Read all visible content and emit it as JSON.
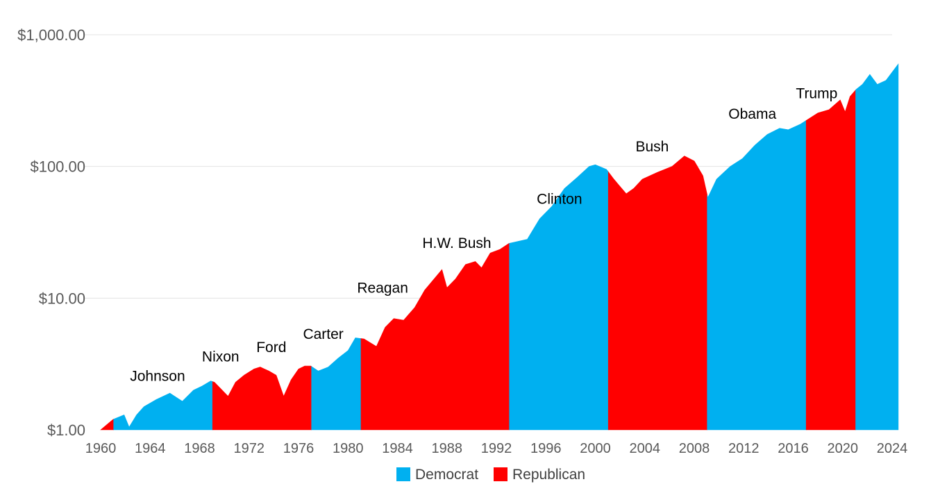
{
  "chart_data": {
    "type": "area",
    "scale": "log",
    "ylim": [
      1,
      1000
    ],
    "xlim": [
      1960,
      2024
    ],
    "grid": "horizontal",
    "legend_position": "bottom",
    "y_ticks": [
      {
        "value": 1,
        "label": "$1.00"
      },
      {
        "value": 10,
        "label": "$10.00"
      },
      {
        "value": 100,
        "label": "$100.00"
      },
      {
        "value": 1000,
        "label": "$1,000.00"
      }
    ],
    "x_ticks": [
      "1960",
      "1964",
      "1968",
      "1972",
      "1976",
      "1980",
      "1984",
      "1988",
      "1992",
      "1996",
      "2000",
      "2004",
      "2008",
      "2012",
      "2016",
      "2020",
      "2024"
    ],
    "legend": [
      {
        "label": "Democrat",
        "color": "#00b0f0"
      },
      {
        "label": "Republican",
        "color": "#ff0000"
      }
    ],
    "colors": {
      "Democrat": "#00b0f0",
      "Republican": "#ff0000"
    },
    "points": [
      [
        1960.0,
        1.0
      ],
      [
        1961.0,
        1.2
      ],
      [
        1961.9,
        1.3
      ],
      [
        1962.3,
        1.05
      ],
      [
        1962.9,
        1.3
      ],
      [
        1963.5,
        1.5
      ],
      [
        1964.5,
        1.7
      ],
      [
        1965.6,
        1.9
      ],
      [
        1966.6,
        1.65
      ],
      [
        1967.5,
        2.0
      ],
      [
        1968.2,
        2.15
      ],
      [
        1968.9,
        2.35
      ],
      [
        1969.2,
        2.3
      ],
      [
        1970.3,
        1.8
      ],
      [
        1970.9,
        2.3
      ],
      [
        1971.6,
        2.6
      ],
      [
        1972.4,
        2.9
      ],
      [
        1972.9,
        3.0
      ],
      [
        1973.6,
        2.8
      ],
      [
        1974.2,
        2.6
      ],
      [
        1974.8,
        1.8
      ],
      [
        1975.4,
        2.4
      ],
      [
        1976.0,
        2.9
      ],
      [
        1976.5,
        3.05
      ],
      [
        1977.0,
        3.05
      ],
      [
        1977.6,
        2.8
      ],
      [
        1978.4,
        3.0
      ],
      [
        1979.2,
        3.5
      ],
      [
        1980.0,
        4.0
      ],
      [
        1980.6,
        5.0
      ],
      [
        1981.3,
        4.9
      ],
      [
        1982.3,
        4.3
      ],
      [
        1983.0,
        6.0
      ],
      [
        1983.7,
        7.0
      ],
      [
        1984.5,
        6.8
      ],
      [
        1985.4,
        8.5
      ],
      [
        1986.2,
        11.5
      ],
      [
        1987.6,
        16.5
      ],
      [
        1988.0,
        12.0
      ],
      [
        1988.7,
        14.0
      ],
      [
        1989.5,
        18.0
      ],
      [
        1990.3,
        19.0
      ],
      [
        1990.8,
        17.0
      ],
      [
        1991.5,
        22.0
      ],
      [
        1992.3,
        23.5
      ],
      [
        1993.0,
        26.0
      ],
      [
        1994.5,
        28.0
      ],
      [
        1995.5,
        40.0
      ],
      [
        1996.5,
        50.0
      ],
      [
        1997.5,
        68.0
      ],
      [
        1998.5,
        82.0
      ],
      [
        1999.5,
        100.0
      ],
      [
        2000.0,
        103.0
      ],
      [
        2000.9,
        95.0
      ],
      [
        2001.5,
        80.0
      ],
      [
        2002.5,
        62.0
      ],
      [
        2003.1,
        68.0
      ],
      [
        2003.8,
        80.0
      ],
      [
        2005.0,
        90.0
      ],
      [
        2006.2,
        100.0
      ],
      [
        2007.2,
        120.0
      ],
      [
        2008.0,
        110.0
      ],
      [
        2008.7,
        85.0
      ],
      [
        2009.1,
        58.0
      ],
      [
        2009.8,
        80.0
      ],
      [
        2010.9,
        100.0
      ],
      [
        2011.9,
        115.0
      ],
      [
        2012.9,
        145.0
      ],
      [
        2013.9,
        175.0
      ],
      [
        2014.9,
        195.0
      ],
      [
        2015.6,
        190.0
      ],
      [
        2016.6,
        210.0
      ],
      [
        2017.1,
        225.0
      ],
      [
        2018.0,
        255.0
      ],
      [
        2018.9,
        270.0
      ],
      [
        2019.8,
        320.0
      ],
      [
        2020.2,
        260.0
      ],
      [
        2020.6,
        340.0
      ],
      [
        2021.1,
        385.0
      ],
      [
        2021.6,
        420.0
      ],
      [
        2022.2,
        500.0
      ],
      [
        2022.8,
        420.0
      ],
      [
        2023.5,
        450.0
      ],
      [
        2024.0,
        520.0
      ],
      [
        2024.5,
        600.0
      ]
    ],
    "segments": [
      {
        "party": "Republican",
        "x0": 1960.0,
        "x1": 1961.05
      },
      {
        "party": "Democrat",
        "x0": 1961.05,
        "x1": 1969.05
      },
      {
        "party": "Republican",
        "x0": 1969.05,
        "x1": 1977.05
      },
      {
        "party": "Democrat",
        "x0": 1977.05,
        "x1": 1981.05
      },
      {
        "party": "Republican",
        "x0": 1981.05,
        "x1": 1993.05
      },
      {
        "party": "Democrat",
        "x0": 1993.05,
        "x1": 2001.05
      },
      {
        "party": "Republican",
        "x0": 2001.05,
        "x1": 2009.05
      },
      {
        "party": "Democrat",
        "x0": 2009.05,
        "x1": 2017.05
      },
      {
        "party": "Republican",
        "x0": 2017.05,
        "x1": 2021.05
      },
      {
        "party": "Democrat",
        "x0": 2021.05,
        "x1": 2024.5
      }
    ],
    "annotations": [
      {
        "label": "Johnson",
        "x": 1964.6,
        "y": 2.35
      },
      {
        "label": "Nixon",
        "x": 1969.7,
        "y": 3.3
      },
      {
        "label": "Ford",
        "x": 1973.8,
        "y": 3.9
      },
      {
        "label": "Carter",
        "x": 1978.0,
        "y": 4.9
      },
      {
        "label": "Reagan",
        "x": 1982.8,
        "y": 11.0
      },
      {
        "label": "H.W. Bush",
        "x": 1988.8,
        "y": 24.0
      },
      {
        "label": "Clinton",
        "x": 1997.1,
        "y": 52.0
      },
      {
        "label": "Bush",
        "x": 2004.6,
        "y": 130.0
      },
      {
        "label": "Obama",
        "x": 2012.7,
        "y": 230.0
      },
      {
        "label": "Trump",
        "x": 2017.9,
        "y": 330.0
      }
    ]
  }
}
